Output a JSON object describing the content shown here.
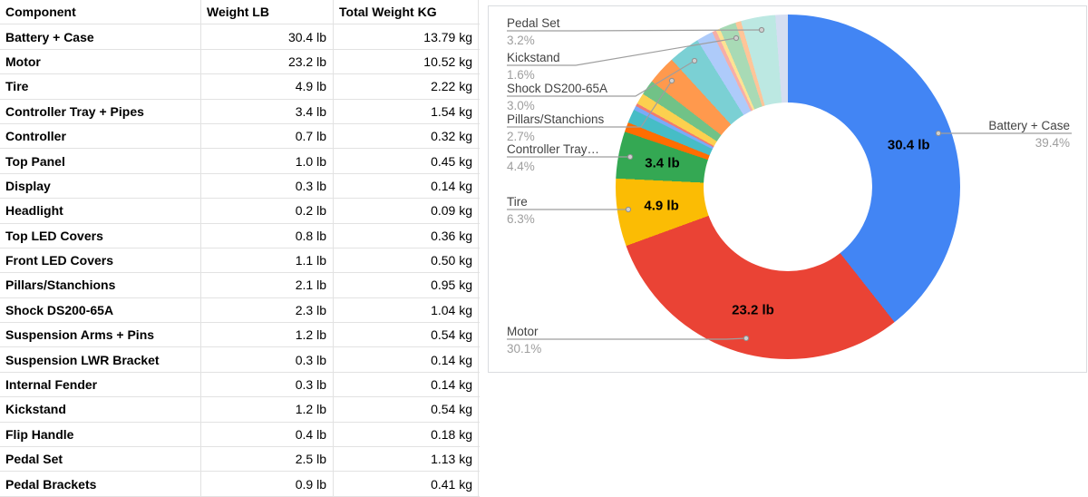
{
  "table": {
    "columns": [
      "Component",
      "Weight LB",
      "Total Weight KG"
    ],
    "rows": [
      [
        "Battery + Case",
        "30.4 lb",
        "13.79 kg"
      ],
      [
        "Motor",
        "23.2 lb",
        "10.52 kg"
      ],
      [
        "Tire",
        "4.9 lb",
        "2.22 kg"
      ],
      [
        "Controller Tray + Pipes",
        "3.4 lb",
        "1.54 kg"
      ],
      [
        "Controller",
        "0.7 lb",
        "0.32 kg"
      ],
      [
        "Top Panel",
        "1.0 lb",
        "0.45 kg"
      ],
      [
        "Display",
        "0.3 lb",
        "0.14 kg"
      ],
      [
        "Headlight",
        "0.2 lb",
        "0.09 kg"
      ],
      [
        "Top LED Covers",
        "0.8 lb",
        "0.36 kg"
      ],
      [
        "Front LED Covers",
        "1.1 lb",
        "0.50 kg"
      ],
      [
        "Pillars/Stanchions",
        "2.1 lb",
        "0.95 kg"
      ],
      [
        "Shock DS200-65A",
        "2.3 lb",
        "1.04 kg"
      ],
      [
        "Suspension Arms + Pins",
        "1.2 lb",
        "0.54 kg"
      ],
      [
        "Suspension LWR Bracket",
        "0.3 lb",
        "0.14 kg"
      ],
      [
        "Internal Fender",
        "0.3 lb",
        "0.14 kg"
      ],
      [
        "Kickstand",
        "1.2 lb",
        "0.54 kg"
      ],
      [
        "Flip Handle",
        "0.4 lb",
        "0.18 kg"
      ],
      [
        "Pedal Set",
        "2.5 lb",
        "1.13 kg"
      ],
      [
        "Pedal Brackets",
        "0.9 lb",
        "0.41 kg"
      ]
    ]
  },
  "chart_data": {
    "type": "pie",
    "donut": true,
    "title": "",
    "unit": "lb",
    "categories": [
      "Battery + Case",
      "Motor",
      "Tire",
      "Controller Tray + Pipes",
      "Controller",
      "Top Panel",
      "Display",
      "Headlight",
      "Top LED Covers",
      "Front LED Covers",
      "Pillars/Stanchions",
      "Shock DS200-65A",
      "Suspension Arms + Pins",
      "Suspension LWR Bracket",
      "Internal Fender",
      "Kickstand",
      "Flip Handle",
      "Pedal Set",
      "Pedal Brackets"
    ],
    "values": [
      30.4,
      23.2,
      4.9,
      3.4,
      0.7,
      1.0,
      0.3,
      0.2,
      0.8,
      1.1,
      2.1,
      2.3,
      1.2,
      0.3,
      0.3,
      1.2,
      0.4,
      2.5,
      0.9
    ],
    "colors": [
      "#4285F4",
      "#EA4335",
      "#FBBC04",
      "#34A853",
      "#FF6D01",
      "#46BDC6",
      "#7BAAF7",
      "#F07B72",
      "#FCD04F",
      "#71C287",
      "#FF994D",
      "#7BD0D4",
      "#AECBFA",
      "#F6AEA9",
      "#FDE293",
      "#A8DAB5",
      "#FFC599",
      "#BCE8E2",
      "#D5DEF1"
    ],
    "inside_labels": [
      {
        "slice_index": 0,
        "text": "30.4 lb"
      },
      {
        "slice_index": 1,
        "text": "23.2 lb"
      },
      {
        "slice_index": 2,
        "text": "4.9 lb"
      },
      {
        "slice_index": 3,
        "text": "3.4 lb"
      }
    ],
    "callouts": [
      {
        "label": "Pedal Set",
        "pct": "3.2%"
      },
      {
        "label": "Kickstand",
        "pct": "1.6%"
      },
      {
        "label": "Shock DS200-65A",
        "pct": "3.0%"
      },
      {
        "label": "Pillars/Stanchions",
        "pct": "2.7%"
      },
      {
        "label": "Controller Tray…",
        "pct": "4.4%"
      },
      {
        "label": "Tire",
        "pct": "6.3%"
      },
      {
        "label": "Motor",
        "pct": "30.1%"
      },
      {
        "label": "Battery + Case",
        "pct": "39.4%"
      }
    ],
    "line_color": "#9e9e9e",
    "label_color": "#424242",
    "pct_color": "#9e9e9e"
  }
}
